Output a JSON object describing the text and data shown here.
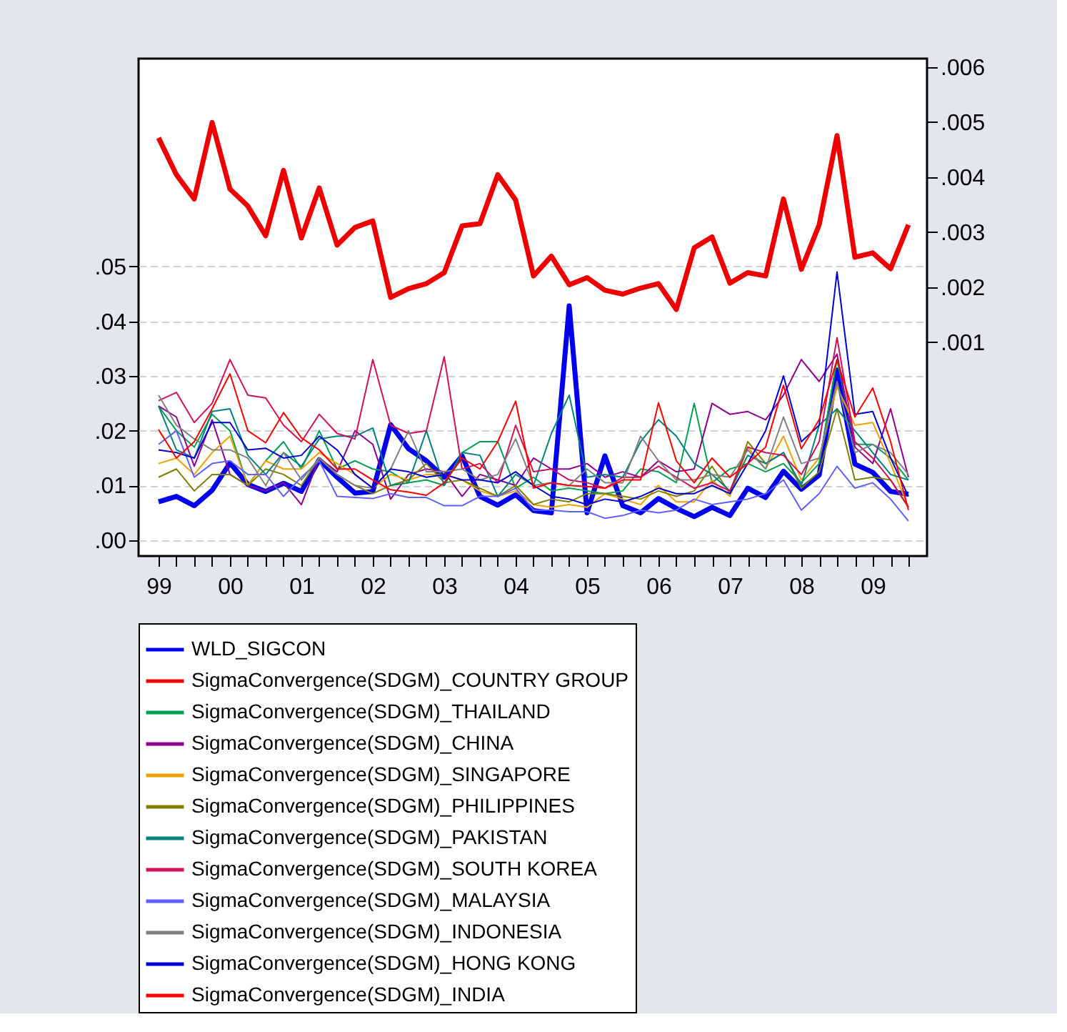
{
  "chart_data": {
    "type": "line",
    "x": [
      1999.0,
      1999.25,
      1999.5,
      1999.75,
      2000.0,
      2000.25,
      2000.5,
      2000.75,
      2001.0,
      2001.25,
      2001.5,
      2001.75,
      2002.0,
      2002.25,
      2002.5,
      2002.75,
      2003.0,
      2003.25,
      2003.5,
      2003.75,
      2004.0,
      2004.25,
      2004.5,
      2004.75,
      2005.0,
      2005.25,
      2005.5,
      2005.75,
      2006.0,
      2006.25,
      2006.5,
      2006.75,
      2007.0,
      2007.25,
      2007.5,
      2007.75,
      2008.0,
      2008.25,
      2008.5,
      2008.75,
      2009.0,
      2009.25,
      2009.5
    ],
    "xlim": [
      1998.72,
      2009.76
    ],
    "xticks": [
      {
        "value": 1999,
        "label": "99"
      },
      {
        "value": 1999.25,
        "label": null
      },
      {
        "value": 1999.5,
        "label": null
      },
      {
        "value": 1999.75,
        "label": null
      },
      {
        "value": 2000,
        "label": "00"
      },
      {
        "value": 2000.25,
        "label": null
      },
      {
        "value": 2000.5,
        "label": null
      },
      {
        "value": 2000.75,
        "label": null
      },
      {
        "value": 2001,
        "label": "01"
      },
      {
        "value": 2001.25,
        "label": null
      },
      {
        "value": 2001.5,
        "label": null
      },
      {
        "value": 2001.75,
        "label": null
      },
      {
        "value": 2002,
        "label": "02"
      },
      {
        "value": 2002.25,
        "label": null
      },
      {
        "value": 2002.5,
        "label": null
      },
      {
        "value": 2002.75,
        "label": null
      },
      {
        "value": 2003,
        "label": "03"
      },
      {
        "value": 2003.25,
        "label": null
      },
      {
        "value": 2003.5,
        "label": null
      },
      {
        "value": 2003.75,
        "label": null
      },
      {
        "value": 2004,
        "label": "04"
      },
      {
        "value": 2004.25,
        "label": null
      },
      {
        "value": 2004.5,
        "label": null
      },
      {
        "value": 2004.75,
        "label": null
      },
      {
        "value": 2005,
        "label": "05"
      },
      {
        "value": 2005.25,
        "label": null
      },
      {
        "value": 2005.5,
        "label": null
      },
      {
        "value": 2005.75,
        "label": null
      },
      {
        "value": 2006,
        "label": "06"
      },
      {
        "value": 2006.25,
        "label": null
      },
      {
        "value": 2006.5,
        "label": null
      },
      {
        "value": 2006.75,
        "label": null
      },
      {
        "value": 2007,
        "label": "07"
      },
      {
        "value": 2007.25,
        "label": null
      },
      {
        "value": 2007.5,
        "label": null
      },
      {
        "value": 2007.75,
        "label": null
      },
      {
        "value": 2008,
        "label": "08"
      },
      {
        "value": 2008.25,
        "label": null
      },
      {
        "value": 2008.5,
        "label": null
      },
      {
        "value": 2008.75,
        "label": null
      },
      {
        "value": 2009,
        "label": "09"
      },
      {
        "value": 2009.25,
        "label": null
      },
      {
        "value": 2009.5,
        "label": null
      }
    ],
    "ylim": [
      -0.0029,
      0.088
    ],
    "yticks": [
      {
        "value": 0,
        "label": ".00"
      },
      {
        "value": 0.01,
        "label": ".01"
      },
      {
        "value": 0.02,
        "label": ".02"
      },
      {
        "value": 0.03,
        "label": ".03"
      },
      {
        "value": 0.04,
        "label": ".04"
      },
      {
        "value": 0.05,
        "label": ".05"
      }
    ],
    "y2lim": [
      -0.00289,
      0.00615
    ],
    "y2ticks": [
      {
        "value": 0.001,
        "label": ".001"
      },
      {
        "value": 0.002,
        "label": ".002"
      },
      {
        "value": 0.003,
        "label": ".003"
      },
      {
        "value": 0.004,
        "label": ".004"
      },
      {
        "value": 0.005,
        "label": ".005"
      },
      {
        "value": 0.006,
        "label": ".006"
      }
    ],
    "grid": "y",
    "legend": "bottom",
    "series": [
      {
        "name": "WLD_SIGCON",
        "color": "#0000ee",
        "values": [
          0.007,
          0.008,
          0.0063,
          0.0091,
          0.0141,
          0.0102,
          0.0089,
          0.0104,
          0.0089,
          0.0147,
          0.0115,
          0.0086,
          0.0089,
          0.0211,
          0.0167,
          0.0145,
          0.0115,
          0.0154,
          0.008,
          0.0064,
          0.0083,
          0.0054,
          0.005,
          0.0428,
          0.005,
          0.0154,
          0.0063,
          0.005,
          0.0076,
          0.0058,
          0.0043,
          0.006,
          0.0045,
          0.0095,
          0.0078,
          0.0126,
          0.0093,
          0.0119,
          0.0311,
          0.0139,
          0.0124,
          0.0089,
          0.0084
        ]
      },
      {
        "name": "SigmaConvergence(SDGM)_COUNTRY GROUP",
        "color": "#ee0000",
        "axis": "y2",
        "values": [
          0.00471,
          0.00404,
          0.0036,
          0.00499,
          0.00378,
          0.00347,
          0.00293,
          0.00412,
          0.00289,
          0.0038,
          0.00276,
          0.00308,
          0.0032,
          0.00181,
          0.00197,
          0.00206,
          0.00226,
          0.00311,
          0.00315,
          0.00404,
          0.00358,
          0.0022,
          0.00256,
          0.00204,
          0.00217,
          0.00194,
          0.00187,
          0.00198,
          0.00206,
          0.00159,
          0.00271,
          0.00291,
          0.00207,
          0.00226,
          0.0022,
          0.0036,
          0.00232,
          0.00313,
          0.00475,
          0.00254,
          0.00262,
          0.00233,
          0.00313
        ]
      },
      {
        "name": "SigmaConvergence(SDGM)_THAILAND",
        "color": "#00a050",
        "values": [
          0.0245,
          0.02,
          0.017,
          0.023,
          0.02,
          0.01,
          0.0145,
          0.018,
          0.013,
          0.02,
          0.013,
          0.0145,
          0.013,
          0.0125,
          0.0105,
          0.011,
          0.01,
          0.016,
          0.018,
          0.018,
          0.0095,
          0.0115,
          0.009,
          0.0095,
          0.009,
          0.0085,
          0.009,
          0.013,
          0.0125,
          0.0105,
          0.025,
          0.0105,
          0.013,
          0.014,
          0.0125,
          0.014,
          0.0105,
          0.014,
          0.033,
          0.0175,
          0.0175,
          0.015,
          0.011
        ]
      },
      {
        "name": "SigmaConvergence(SDGM)_CHINA",
        "color": "#900090",
        "values": [
          0.0245,
          0.0225,
          0.0135,
          0.022,
          0.012,
          0.01,
          0.009,
          0.0105,
          0.0065,
          0.015,
          0.0125,
          0.02,
          0.0175,
          0.0075,
          0.012,
          0.013,
          0.0125,
          0.008,
          0.012,
          0.011,
          0.01,
          0.015,
          0.013,
          0.013,
          0.014,
          0.0115,
          0.0125,
          0.0115,
          0.0145,
          0.0125,
          0.013,
          0.025,
          0.023,
          0.0235,
          0.022,
          0.0265,
          0.033,
          0.029,
          0.034,
          0.017,
          0.014,
          0.024,
          0.0115
        ]
      },
      {
        "name": "SigmaConvergence(SDGM)_SINGAPORE",
        "color": "#f0a000",
        "values": [
          0.014,
          0.015,
          0.012,
          0.016,
          0.019,
          0.01,
          0.0145,
          0.013,
          0.013,
          0.016,
          0.014,
          0.012,
          0.0095,
          0.012,
          0.011,
          0.012,
          0.012,
          0.011,
          0.009,
          0.008,
          0.009,
          0.0065,
          0.006,
          0.0065,
          0.006,
          0.0085,
          0.0075,
          0.0065,
          0.01,
          0.007,
          0.007,
          0.011,
          0.008,
          0.017,
          0.013,
          0.019,
          0.011,
          0.015,
          0.028,
          0.021,
          0.0215,
          0.014,
          0.006
        ]
      },
      {
        "name": "SigmaConvergence(SDGM)_PHILIPPINES",
        "color": "#808000",
        "values": [
          0.0115,
          0.013,
          0.009,
          0.012,
          0.012,
          0.01,
          0.013,
          0.012,
          0.01,
          0.015,
          0.012,
          0.01,
          0.0085,
          0.01,
          0.011,
          0.014,
          0.0105,
          0.011,
          0.0095,
          0.008,
          0.01,
          0.0065,
          0.0075,
          0.007,
          0.0085,
          0.0085,
          0.008,
          0.0075,
          0.009,
          0.008,
          0.009,
          0.0135,
          0.0085,
          0.018,
          0.014,
          0.016,
          0.0095,
          0.0125,
          0.024,
          0.011,
          0.0115,
          0.011,
          0.006
        ]
      },
      {
        "name": "SigmaConvergence(SDGM)_PAKISTAN",
        "color": "#008080",
        "values": [
          0.0245,
          0.0165,
          0.015,
          0.0235,
          0.024,
          0.0155,
          0.012,
          0.016,
          0.0135,
          0.0185,
          0.019,
          0.019,
          0.0205,
          0.01,
          0.0105,
          0.02,
          0.01,
          0.016,
          0.0155,
          0.008,
          0.012,
          0.01,
          0.0195,
          0.0265,
          0.0115,
          0.012,
          0.0115,
          0.018,
          0.022,
          0.019,
          0.014,
          0.012,
          0.009,
          0.0155,
          0.014,
          0.016,
          0.01,
          0.021,
          0.024,
          0.02,
          0.016,
          0.012,
          0.011
        ]
      },
      {
        "name": "SigmaConvergence(SDGM)_SOUTH KOREA",
        "color": "#d0105a",
        "values": [
          0.0255,
          0.027,
          0.0215,
          0.025,
          0.033,
          0.0265,
          0.026,
          0.021,
          0.018,
          0.023,
          0.0195,
          0.0185,
          0.033,
          0.021,
          0.0195,
          0.02,
          0.0335,
          0.013,
          0.014,
          0.0105,
          0.021,
          0.0125,
          0.013,
          0.011,
          0.0105,
          0.0095,
          0.0115,
          0.0115,
          0.0135,
          0.0115,
          0.0095,
          0.0105,
          0.009,
          0.017,
          0.016,
          0.0155,
          0.012,
          0.018,
          0.037,
          0.018,
          0.015,
          0.011,
          0.006
        ]
      },
      {
        "name": "SigmaConvergence(SDGM)_MALAYSIA",
        "color": "#6060ff",
        "values": [
          0.0175,
          0.02,
          0.0115,
          0.014,
          0.0145,
          0.012,
          0.012,
          0.008,
          0.0115,
          0.0145,
          0.008,
          0.0078,
          0.0076,
          0.0085,
          0.0078,
          0.0078,
          0.0063,
          0.0063,
          0.008,
          0.008,
          0.0095,
          0.0055,
          0.0055,
          0.0052,
          0.0052,
          0.004,
          0.0045,
          0.0055,
          0.005,
          0.0055,
          0.0075,
          0.0065,
          0.007,
          0.0075,
          0.0085,
          0.011,
          0.0055,
          0.0085,
          0.0135,
          0.0095,
          0.0105,
          0.0075,
          0.0035
        ]
      },
      {
        "name": "SigmaConvergence(SDGM)_INDONESIA",
        "color": "#808080",
        "values": [
          0.0265,
          0.021,
          0.0185,
          0.0165,
          0.0165,
          0.015,
          0.01,
          0.016,
          0.011,
          0.015,
          0.012,
          0.01,
          0.0095,
          0.013,
          0.02,
          0.0125,
          0.0125,
          0.013,
          0.011,
          0.012,
          0.0185,
          0.01,
          0.0105,
          0.01,
          0.013,
          0.0105,
          0.0105,
          0.019,
          0.0145,
          0.011,
          0.011,
          0.012,
          0.0115,
          0.0165,
          0.013,
          0.0225,
          0.014,
          0.015,
          0.029,
          0.016,
          0.0175,
          0.016,
          0.012
        ]
      },
      {
        "name": "SigmaConvergence(SDGM)_HONG KONG",
        "color": "#0000d0",
        "values": [
          0.0165,
          0.016,
          0.015,
          0.0215,
          0.0215,
          0.0165,
          0.0168,
          0.015,
          0.0155,
          0.019,
          0.0165,
          0.012,
          0.0095,
          0.013,
          0.0125,
          0.0115,
          0.012,
          0.011,
          0.011,
          0.0105,
          0.0125,
          0.01,
          0.008,
          0.0075,
          0.0065,
          0.0075,
          0.007,
          0.008,
          0.0095,
          0.0085,
          0.0085,
          0.01,
          0.0085,
          0.014,
          0.02,
          0.03,
          0.018,
          0.021,
          0.049,
          0.023,
          0.0235,
          0.015,
          0.008
        ]
      },
      {
        "name": "SigmaConvergence(SDGM)_INDIA",
        "color": "#ff0000",
        "values": [
          0.0202,
          0.015,
          0.018,
          0.024,
          0.0304,
          0.02,
          0.0178,
          0.0233,
          0.0187,
          0.0165,
          0.013,
          0.013,
          0.011,
          0.0092,
          0.0088,
          0.0082,
          0.0105,
          0.015,
          0.013,
          0.018,
          0.0254,
          0.0095,
          0.0105,
          0.01,
          0.0098,
          0.0095,
          0.011,
          0.011,
          0.0251,
          0.0145,
          0.0105,
          0.015,
          0.0115,
          0.014,
          0.017,
          0.0283,
          0.0167,
          0.022,
          0.033,
          0.0225,
          0.0278,
          0.018,
          0.0055
        ]
      }
    ]
  }
}
